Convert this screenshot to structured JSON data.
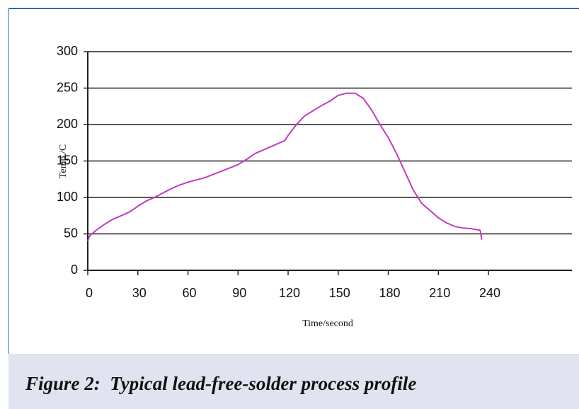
{
  "chart_data": {
    "type": "line",
    "caption": "Figure 2:  Typical lead-free-solder process profile",
    "x_label": "Time/second",
    "y_label": "Temp./C",
    "xlim": [
      0,
      290
    ],
    "ylim": [
      0,
      300
    ],
    "xticks": [
      0,
      30,
      60,
      90,
      120,
      150,
      180,
      210,
      240
    ],
    "yticks": [
      0,
      50,
      100,
      150,
      200,
      250,
      300
    ],
    "grid": true,
    "x": [
      0,
      1,
      5,
      10,
      15,
      20,
      25,
      30,
      35,
      40,
      45,
      50,
      55,
      60,
      70,
      80,
      90,
      95,
      100,
      110,
      118,
      120,
      125,
      130,
      140,
      145,
      150,
      155,
      160,
      165,
      170,
      175,
      180,
      185,
      190,
      195,
      200,
      205,
      210,
      215,
      220,
      225,
      230,
      235,
      236
    ],
    "series": [
      {
        "name": "Temperature",
        "color": "#c23bc4",
        "values": [
          40,
          47,
          55,
          63,
          70,
          75,
          80,
          88,
          95,
          100,
          106,
          112,
          117,
          121,
          127,
          136,
          145,
          152,
          160,
          170,
          178,
          185,
          200,
          212,
          226,
          232,
          240,
          243,
          243,
          236,
          220,
          200,
          182,
          160,
          135,
          110,
          92,
          82,
          72,
          65,
          60,
          58,
          57,
          55,
          42
        ]
      }
    ]
  }
}
